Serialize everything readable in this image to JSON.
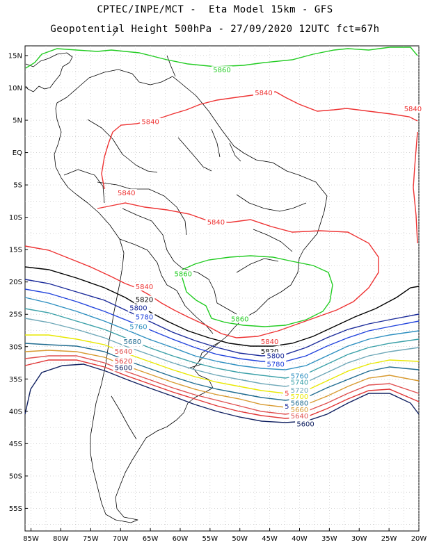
{
  "header": {
    "line1": "CPTEC/INPE/MCT -  Eta Model 15km - GFS",
    "line2": "Geopotential Height 500hPa - 27/09/2020 12UTC fct=67h"
  },
  "axes": {
    "lat_labels": [
      "15N",
      "10N",
      "5N",
      "EQ",
      "5S",
      "10S",
      "15S",
      "20S",
      "25S",
      "30S",
      "35S",
      "40S",
      "45S",
      "50S",
      "55S"
    ],
    "lon_labels": [
      "85W",
      "80W",
      "75W",
      "70W",
      "65W",
      "60W",
      "55W",
      "50W",
      "45W",
      "40W",
      "35W",
      "30W",
      "25W",
      "20W"
    ]
  },
  "map_data": {
    "lat_range": [
      16.5,
      -58.5
    ],
    "lon_range": [
      -86,
      -20
    ],
    "grid": true,
    "contours": [
      {
        "value": "5860",
        "color": "#22cc22",
        "label_at": [
          [
            -53,
            12.5
          ],
          [
            -59.5,
            -19
          ],
          [
            -50,
            -26
          ]
        ]
      },
      {
        "value": "5840",
        "color": "#ee3333",
        "label_at": [
          [
            -46,
            9
          ],
          [
            -21,
            6.5
          ],
          [
            -65,
            4.5
          ],
          [
            -69,
            -6.5
          ],
          [
            -54,
            -11
          ],
          [
            -66,
            -21
          ],
          [
            -45,
            -29.5
          ],
          [
            -41,
            -37.5
          ]
        ]
      },
      {
        "value": "5820",
        "color": "#000000",
        "label_at": [
          [
            -66,
            -23
          ],
          [
            -45,
            -31
          ]
        ]
      },
      {
        "value": "5800",
        "color": "#1a2a9a",
        "label_at": [
          [
            -67,
            -24.3
          ],
          [
            -44,
            -31.7
          ],
          [
            -41,
            -39.5
          ]
        ]
      },
      {
        "value": "5780",
        "color": "#2244dd",
        "label_at": [
          [
            -66,
            -25.7
          ],
          [
            -44,
            -33
          ]
        ]
      },
      {
        "value": "5760",
        "color": "#2d8fc0",
        "label_at": [
          [
            -67,
            -27.2
          ],
          [
            -40,
            -34.8
          ]
        ]
      },
      {
        "value": "5740",
        "color": "#3aa0a8",
        "label_at": [
          [
            -40,
            -35.8
          ]
        ]
      },
      {
        "value": "5720",
        "color": "#6ea8b8",
        "label_at": [
          [
            -40,
            -37
          ]
        ]
      },
      {
        "value": "5700",
        "color": "#e8e800",
        "label_at": [
          [
            -40,
            -38
          ]
        ]
      },
      {
        "value": "5680",
        "color": "#1f6b90",
        "label_at": [
          [
            -68,
            -29.5
          ],
          [
            -40,
            -39
          ]
        ]
      },
      {
        "value": "5660",
        "color": "#d89a30",
        "label_at": [
          [
            -40,
            -40
          ]
        ]
      },
      {
        "value": "5640",
        "color": "#e05050",
        "label_at": [
          [
            -69.5,
            -31
          ],
          [
            -40,
            -41
          ]
        ]
      },
      {
        "value": "5620",
        "color": "#e03535",
        "label_at": [
          [
            -69.5,
            -32.5
          ]
        ]
      },
      {
        "value": "5600",
        "color": "#102060",
        "label_at": [
          [
            -69.5,
            -33.5
          ],
          [
            -39,
            -42.2
          ]
        ]
      }
    ]
  }
}
